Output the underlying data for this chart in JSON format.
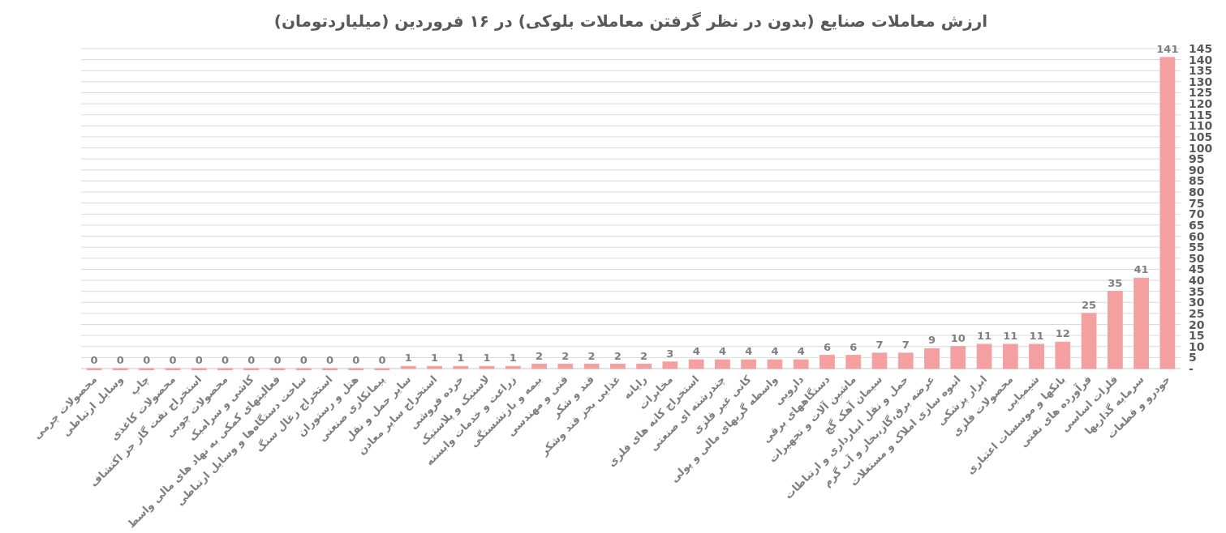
{
  "chart_data": {
    "type": "bar",
    "title": "ارزش معاملات صنایع (بدون در نظر گرفتن معاملات بلوکی) در ۱۶ فروردین (میلیاردتومان)",
    "categories": [
      "محصولات چرمی",
      "وسایل ارتباطی",
      "چاپ",
      "محصولات کاغذی",
      "استخراج نفت گاز جز اکتشاف",
      "محصولات چوبی",
      "کاشی و سرامیک",
      "فعالیتهای کمکی به نهاد های مالی واسط",
      "ساخت دستگاه‌ها و وسایل ارتباطی",
      "استخراج زغال سنگ",
      "هتل و رستوران",
      "پیمانکاری صنعتی",
      "سایر حمل و نقل",
      "استخراج سایر معادن",
      "خرده فروشی",
      "لاستیک و پلاستیک",
      "زراعت و خدمات وابسته",
      "بیمه و بازنشستگی",
      "فنی و مهندسی",
      "قند و شکر",
      "غذایی بجز قند وشکر",
      "رایانه",
      "مخابرات",
      "استخراج کانه های فلزی",
      "چندرشته ای صنعتی",
      "کانی غیر فلزی",
      "واسطه گریهای مالی و پولی",
      "دارویی",
      "دستگاههای برقی",
      "ماشین آلات و تجهیزات",
      "سیمان آهک گچ",
      "حمل و نقل انبارداری و ارتباطات",
      "عرضه برق،گاز،بخار و آب گرم",
      "انبوه سازی املاک و مستغلات",
      "ابزار پزشکی",
      "محصولات فلزی",
      "شیمیایی",
      "بانکها و موسسات اعتباری",
      "فرآورده های نفتی",
      "فلزات اساسی",
      "سرمایه گذاریها",
      "خودرو و قطعات"
    ],
    "values": [
      0,
      0,
      0,
      0,
      0,
      0,
      0,
      0,
      0,
      0,
      0,
      0,
      1,
      1,
      1,
      1,
      1,
      2,
      2,
      2,
      2,
      2,
      3,
      4,
      4,
      4,
      4,
      4,
      6,
      6,
      7,
      7,
      9,
      10,
      11,
      11,
      11,
      12,
      25,
      35,
      41,
      141
    ],
    "color": "#f4a0a0",
    "ylim": [
      0,
      145
    ],
    "yticks": [
      {
        "value": 0,
        "label": "-"
      },
      5,
      10,
      15,
      20,
      25,
      30,
      35,
      40,
      45,
      50,
      55,
      60,
      65,
      70,
      75,
      80,
      85,
      90,
      95,
      100,
      105,
      110,
      115,
      120,
      125,
      130,
      135,
      140,
      145
    ],
    "grid": "y",
    "data_labels": true
  }
}
